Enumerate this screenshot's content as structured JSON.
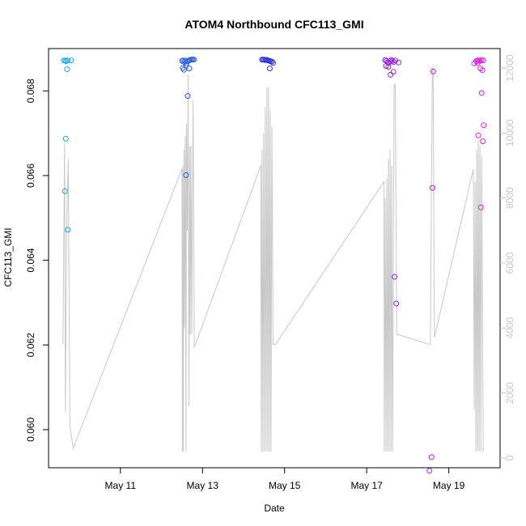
{
  "chart_data": {
    "type": "scatter",
    "title": "ATOM4 Northbound CFC113_GMI",
    "xlabel": "Date",
    "ylabel": "CFC113_GMI",
    "x_ticks": [
      "May 11",
      "May 13",
      "May 15",
      "May 17",
      "May 19"
    ],
    "x_tick_days": [
      11,
      13,
      15,
      17,
      19
    ],
    "xlim_days": [
      9.25,
      20.25
    ],
    "ylim": [
      0.0591,
      0.069
    ],
    "y_ticks": [
      0.06,
      0.062,
      0.064,
      0.066,
      0.068
    ],
    "y_tick_labels": [
      "0.060",
      "0.062",
      "0.064",
      "0.066",
      "0.068"
    ],
    "y2_ticks": [
      0,
      2000,
      4000,
      6000,
      8000,
      10000,
      12000
    ],
    "y2_tick_labels": [
      "0",
      "2000",
      "4000",
      "6000",
      "8000",
      "10000",
      "12000"
    ],
    "y2lim": [
      -300,
      12600
    ],
    "colors": {
      "line": "#c8c8c8",
      "right_axis": "#c8c8c8",
      "point_start": "#19a7e6",
      "point_mid": "#2b2bd6",
      "point_end": "#e619e6"
    },
    "points": [
      {
        "day": 9.62,
        "value": 0.06872
      },
      {
        "day": 9.66,
        "value": 0.06872
      },
      {
        "day": 9.68,
        "value": 0.0687
      },
      {
        "day": 9.72,
        "value": 0.06872
      },
      {
        "day": 9.8,
        "value": 0.06872
      },
      {
        "day": 9.7,
        "value": 0.06851
      },
      {
        "day": 9.67,
        "value": 0.06687
      },
      {
        "day": 9.65,
        "value": 0.06563
      },
      {
        "day": 9.72,
        "value": 0.06472
      },
      {
        "day": 12.5,
        "value": 0.06871
      },
      {
        "day": 12.53,
        "value": 0.06872
      },
      {
        "day": 12.56,
        "value": 0.06868
      },
      {
        "day": 12.58,
        "value": 0.06872
      },
      {
        "day": 12.61,
        "value": 0.06865
      },
      {
        "day": 12.64,
        "value": 0.0687
      },
      {
        "day": 12.67,
        "value": 0.06872
      },
      {
        "day": 12.7,
        "value": 0.06873
      },
      {
        "day": 12.73,
        "value": 0.06874
      },
      {
        "day": 12.76,
        "value": 0.06874
      },
      {
        "day": 12.79,
        "value": 0.06874
      },
      {
        "day": 12.52,
        "value": 0.06854
      },
      {
        "day": 12.55,
        "value": 0.0685
      },
      {
        "day": 12.6,
        "value": 0.0686
      },
      {
        "day": 12.68,
        "value": 0.06853
      },
      {
        "day": 12.64,
        "value": 0.06788
      },
      {
        "day": 12.6,
        "value": 0.06601
      },
      {
        "day": 14.45,
        "value": 0.06874
      },
      {
        "day": 14.48,
        "value": 0.06874
      },
      {
        "day": 14.51,
        "value": 0.06873
      },
      {
        "day": 14.54,
        "value": 0.06873
      },
      {
        "day": 14.57,
        "value": 0.06873
      },
      {
        "day": 14.6,
        "value": 0.06872
      },
      {
        "day": 14.63,
        "value": 0.06871
      },
      {
        "day": 14.66,
        "value": 0.0687
      },
      {
        "day": 14.69,
        "value": 0.06869
      },
      {
        "day": 14.72,
        "value": 0.06866
      },
      {
        "day": 14.64,
        "value": 0.06853
      },
      {
        "day": 17.45,
        "value": 0.06873
      },
      {
        "day": 17.48,
        "value": 0.06871
      },
      {
        "day": 17.51,
        "value": 0.06868
      },
      {
        "day": 17.54,
        "value": 0.06866
      },
      {
        "day": 17.57,
        "value": 0.0687
      },
      {
        "day": 17.6,
        "value": 0.06873
      },
      {
        "day": 17.63,
        "value": 0.06871
      },
      {
        "day": 17.66,
        "value": 0.06868
      },
      {
        "day": 17.7,
        "value": 0.06872
      },
      {
        "day": 17.78,
        "value": 0.06867
      },
      {
        "day": 17.47,
        "value": 0.06859
      },
      {
        "day": 17.53,
        "value": 0.06857
      },
      {
        "day": 17.58,
        "value": 0.06838
      },
      {
        "day": 17.65,
        "value": 0.06845
      },
      {
        "day": 17.68,
        "value": 0.06361
      },
      {
        "day": 17.72,
        "value": 0.06298
      },
      {
        "day": 18.62,
        "value": 0.06846
      },
      {
        "day": 18.6,
        "value": 0.06571
      },
      {
        "day": 18.58,
        "value": 0.05935
      },
      {
        "day": 18.53,
        "value": 0.05903
      },
      {
        "day": 19.62,
        "value": 0.06865
      },
      {
        "day": 19.67,
        "value": 0.0687
      },
      {
        "day": 19.7,
        "value": 0.06872
      },
      {
        "day": 19.73,
        "value": 0.06872
      },
      {
        "day": 19.76,
        "value": 0.06871
      },
      {
        "day": 19.8,
        "value": 0.06873
      },
      {
        "day": 19.84,
        "value": 0.06872
      },
      {
        "day": 19.7,
        "value": 0.06866
      },
      {
        "day": 19.77,
        "value": 0.06853
      },
      {
        "day": 19.82,
        "value": 0.06849
      },
      {
        "day": 19.8,
        "value": 0.06795
      },
      {
        "day": 19.85,
        "value": 0.06719
      },
      {
        "day": 19.72,
        "value": 0.06695
      },
      {
        "day": 19.83,
        "value": 0.06681
      },
      {
        "day": 19.78,
        "value": 0.06525
      }
    ],
    "altitude_series": {
      "day": [
        9.6,
        9.64,
        9.66,
        9.69,
        9.73,
        9.77,
        9.85,
        12.5,
        12.51,
        12.52,
        12.53,
        12.55,
        12.56,
        12.58,
        12.6,
        12.61,
        12.63,
        12.65,
        12.67,
        12.69,
        12.7,
        12.72,
        12.74,
        12.77,
        12.8,
        14.42,
        14.43,
        14.45,
        14.47,
        14.49,
        14.51,
        14.53,
        14.55,
        14.57,
        14.59,
        14.61,
        14.63,
        14.65,
        14.67,
        14.69,
        14.72,
        14.74,
        14.78,
        17.42,
        17.43,
        17.45,
        17.47,
        17.49,
        17.51,
        17.53,
        17.55,
        17.57,
        17.59,
        17.61,
        17.63,
        17.67,
        17.7,
        17.73,
        17.76,
        18.52,
        18.55,
        18.6,
        18.62,
        18.65,
        19.6,
        19.62,
        19.64,
        19.66,
        19.68,
        19.7,
        19.72,
        19.74,
        19.76,
        19.78,
        19.8,
        19.84
      ],
      "altitude": [
        3500,
        9700,
        1400,
        7000,
        9200,
        1000,
        300,
        8900,
        200,
        9000,
        200,
        9500,
        4000,
        9900,
        200,
        10300,
        7000,
        11800,
        1600,
        9600,
        3800,
        9600,
        3800,
        11000,
        3400,
        9000,
        200,
        9500,
        200,
        10000,
        200,
        10800,
        200,
        11400,
        200,
        11400,
        200,
        10700,
        200,
        10200,
        3500,
        3500,
        3500,
        8500,
        200,
        8000,
        200,
        8600,
        200,
        9200,
        200,
        9500,
        200,
        9000,
        200,
        11500,
        11500,
        3800,
        3800,
        3500,
        3500,
        12000,
        12000,
        3700,
        8900,
        1500,
        8500,
        200,
        9500,
        200,
        9800,
        200,
        9600,
        200,
        9300,
        200
      ]
    }
  }
}
